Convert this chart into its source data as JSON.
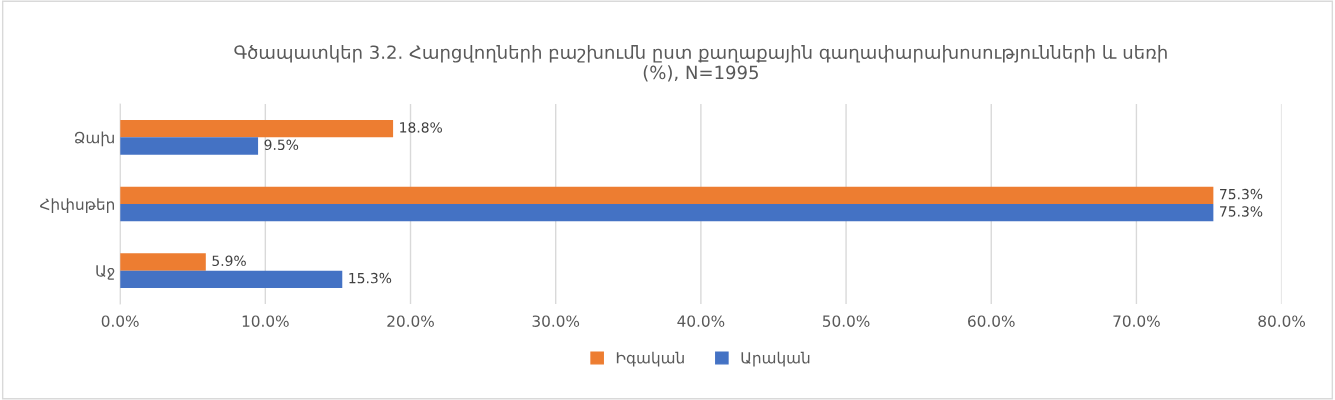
{
  "chart_data": {
    "type": "bar",
    "orientation": "horizontal",
    "title": "Գծապատկեր 3.2. Հարցվողների բաշխումն ըստ քաղաքային գաղափարախոսությունների և սեռի\n(%), N=1995",
    "categories": [
      "Ձախ",
      "Հիփսթեր",
      "Աջ"
    ],
    "series": [
      {
        "name": "Իգական",
        "color": "#ed7d31",
        "values": [
          18.8,
          75.3,
          5.9
        ],
        "value_labels": [
          "18.8%",
          "75.3%",
          "5.9%"
        ]
      },
      {
        "name": "Արական",
        "color": "#4472c4",
        "values": [
          9.5,
          75.3,
          15.3
        ],
        "value_labels": [
          "9.5%",
          "75.3%",
          "15.3%"
        ]
      }
    ],
    "xlim": [
      0,
      80
    ],
    "xticks": [
      {
        "value": 0,
        "label": "0.0%"
      },
      {
        "value": 10,
        "label": "10.0%"
      },
      {
        "value": 20,
        "label": "20.0%"
      },
      {
        "value": 30,
        "label": "30.0%"
      },
      {
        "value": 40,
        "label": "40.0%"
      },
      {
        "value": 50,
        "label": "50.0%"
      },
      {
        "value": 60,
        "label": "60.0%"
      },
      {
        "value": 70,
        "label": "70.0%"
      },
      {
        "value": 80,
        "label": "80.0%"
      }
    ],
    "grid": "x",
    "legend": "bottom"
  }
}
